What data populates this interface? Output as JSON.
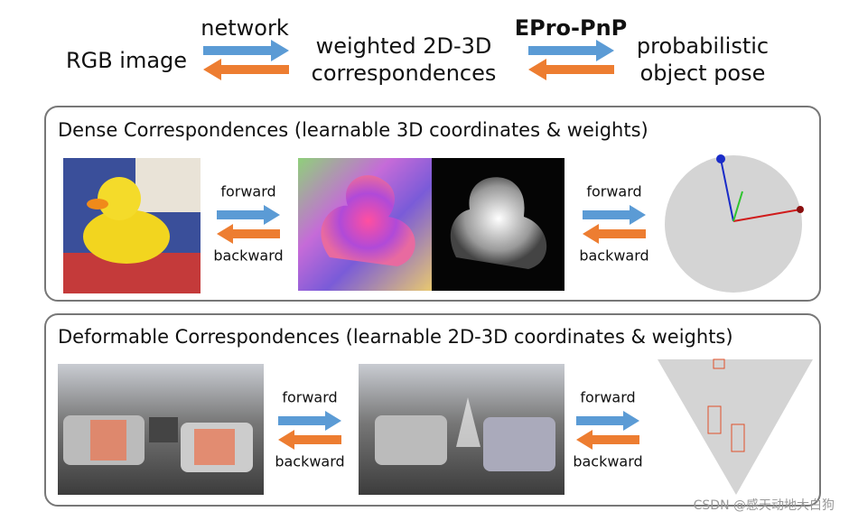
{
  "header": {
    "input": "RGB image",
    "network_label": "network",
    "middle": [
      "weighted 2D-3D",
      "correspondences"
    ],
    "method": "EPro-PnP",
    "output": [
      "probabilistic",
      "object pose"
    ]
  },
  "panels": [
    {
      "title": "Dense Correspondences (learnable 3D coordinates & weights)",
      "arrows": [
        {
          "forward": "forward",
          "backward": "backward"
        },
        {
          "forward": "forward",
          "backward": "backward"
        }
      ]
    },
    {
      "title": "Deformable Correspondences (learnable 2D-3D coordinates & weights)",
      "arrows": [
        {
          "forward": "forward",
          "backward": "backward"
        },
        {
          "forward": "forward",
          "backward": "backward"
        }
      ]
    }
  ],
  "watermark": "CSDN @感天动地大白狗"
}
